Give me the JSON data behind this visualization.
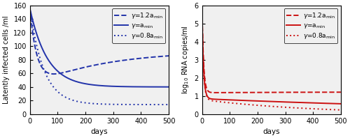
{
  "fig_width": 5.0,
  "fig_height": 1.98,
  "dpi": 100,
  "left_panel": {
    "ylabel": "Latently infected cells /ml",
    "xlabel": "days",
    "xlim": [
      0,
      500
    ],
    "ylim": [
      0,
      160
    ],
    "yticks": [
      0,
      20,
      40,
      60,
      80,
      100,
      120,
      140,
      160
    ],
    "xticks": [
      0,
      100,
      200,
      300,
      400,
      500
    ],
    "color": "#2233aa",
    "line_width": 1.4
  },
  "right_panel": {
    "ylabel": "log$_{10}$ RNA copies/ml",
    "xlabel": "days",
    "xlim": [
      0,
      500
    ],
    "ylim": [
      0,
      6
    ],
    "yticks": [
      0,
      1,
      2,
      3,
      4,
      5,
      6
    ],
    "xticks": [
      0,
      100,
      200,
      300,
      400,
      500
    ],
    "color": "#cc1111",
    "line_width": 1.4
  },
  "bg_color": "#f0f0f0",
  "tick_fontsize": 7,
  "label_fontsize": 7.5,
  "legend_fontsize": 6.5
}
